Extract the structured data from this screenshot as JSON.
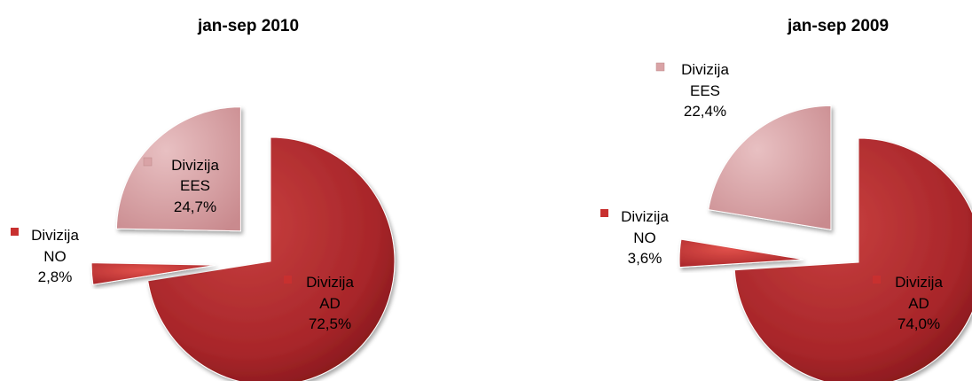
{
  "colors": {
    "AD": "#a8262a",
    "NO": "#c8302f",
    "EES": "#d9a3a6"
  },
  "chart_data": [
    {
      "type": "pie",
      "title": "jan-sep 2010",
      "slices": [
        {
          "key": "AD",
          "line1": "Divizija",
          "line2": "AD",
          "pct_label": "72,5%",
          "value": 72.5
        },
        {
          "key": "NO",
          "line1": "Divizija",
          "line2": "NO",
          "pct_label": "2,8%",
          "value": 2.8
        },
        {
          "key": "EES",
          "line1": "Divizija",
          "line2": "EES",
          "pct_label": "24,7%",
          "value": 24.7
        }
      ]
    },
    {
      "type": "pie",
      "title": "jan-sep 2009",
      "slices": [
        {
          "key": "AD",
          "line1": "Divizija",
          "line2": "AD",
          "pct_label": "74,0%",
          "value": 74.0
        },
        {
          "key": "NO",
          "line1": "Divizija",
          "line2": "NO",
          "pct_label": "3,6%",
          "value": 3.6
        },
        {
          "key": "EES",
          "line1": "Divizija",
          "line2": "EES",
          "pct_label": "22,4%",
          "value": 22.4
        }
      ]
    }
  ]
}
